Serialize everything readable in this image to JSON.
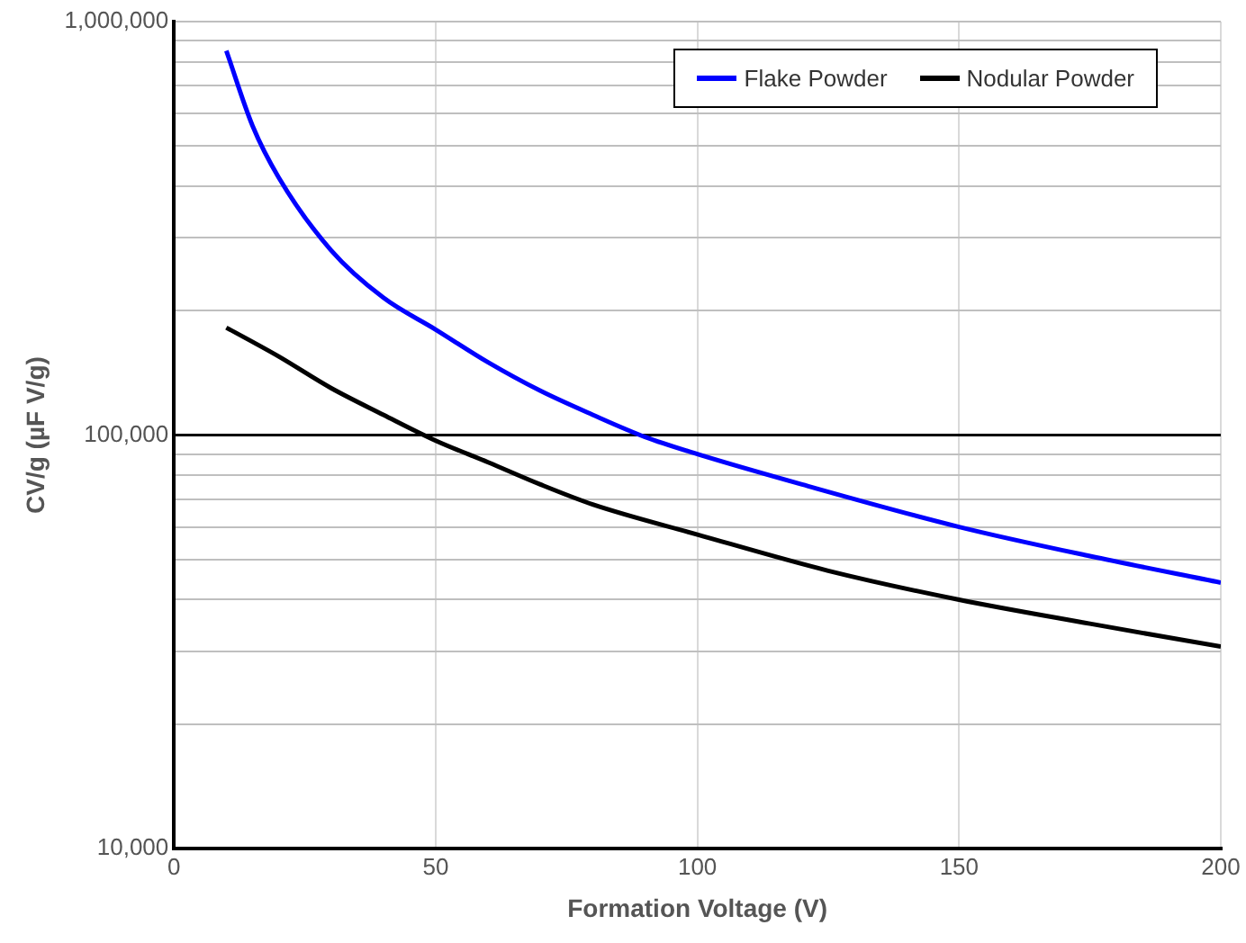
{
  "chart_data": {
    "type": "line",
    "xlabel": "Formation Voltage (V)",
    "ylabel": "CV/g (µF V/g)",
    "xlim": [
      0,
      200
    ],
    "xticks": [
      0,
      50,
      100,
      150,
      200
    ],
    "ylim": [
      10000,
      1000000
    ],
    "log": true,
    "yticks": [
      {
        "value": 10000,
        "label": "10,000"
      },
      {
        "value": 20000,
        "label": null
      },
      {
        "value": 30000,
        "label": null
      },
      {
        "value": 40000,
        "label": null
      },
      {
        "value": 50000,
        "label": null
      },
      {
        "value": 60000,
        "label": null
      },
      {
        "value": 70000,
        "label": null
      },
      {
        "value": 80000,
        "label": null
      },
      {
        "value": 90000,
        "label": null
      },
      {
        "value": 100000,
        "label": "100,000"
      },
      {
        "value": 200000,
        "label": null
      },
      {
        "value": 300000,
        "label": null
      },
      {
        "value": 400000,
        "label": null
      },
      {
        "value": 500000,
        "label": null
      },
      {
        "value": 600000,
        "label": null
      },
      {
        "value": 700000,
        "label": null
      },
      {
        "value": 800000,
        "label": null
      },
      {
        "value": 900000,
        "label": null
      },
      {
        "value": 1000000,
        "label": "1,000,000"
      }
    ],
    "ref_lines": [
      {
        "axis": "y",
        "value": 100000,
        "color": "#000000"
      }
    ],
    "grid": true,
    "legend": "top right",
    "marker": "none",
    "line_style": "solid",
    "series": [
      {
        "name": "Flake Powder",
        "color": "#0000ff",
        "x": [
          10,
          15,
          20,
          30,
          40,
          50,
          60,
          70,
          80,
          90,
          100,
          120,
          150,
          175,
          200
        ],
        "values": [
          850000,
          560000,
          420000,
          280000,
          215000,
          180000,
          150000,
          128000,
          112000,
          99000,
          90000,
          76000,
          60000,
          51000,
          44000
        ]
      },
      {
        "name": "Nodular Powder",
        "color": "#000000",
        "x": [
          10,
          20,
          30,
          40,
          50,
          60,
          70,
          80,
          100,
          125,
          150,
          175,
          200
        ],
        "values": [
          182000,
          155000,
          130000,
          112000,
          97000,
          86000,
          76000,
          68000,
          57500,
          47000,
          40000,
          35000,
          30800
        ]
      }
    ]
  }
}
